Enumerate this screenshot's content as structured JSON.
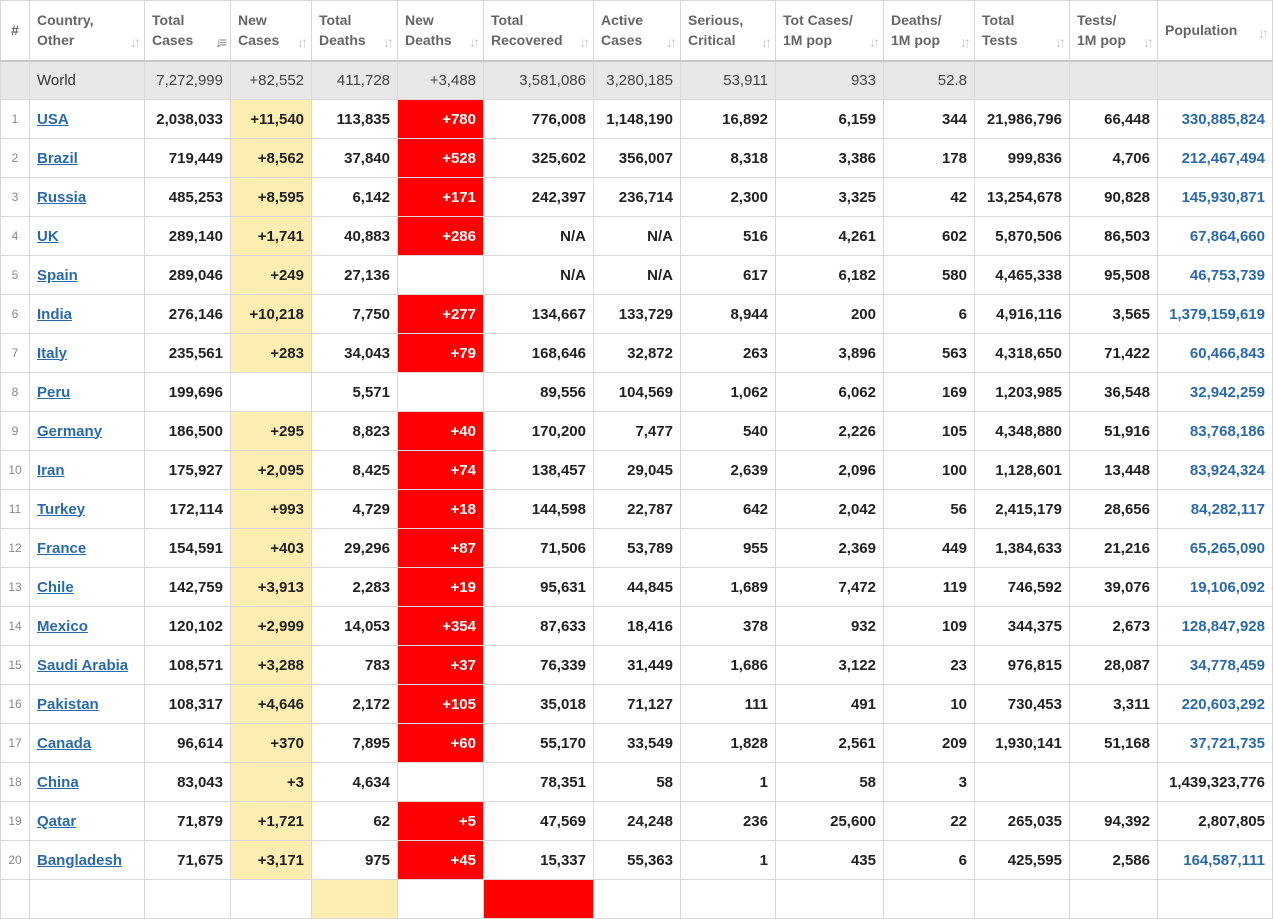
{
  "headers": [
    {
      "key": "rank",
      "label": "#"
    },
    {
      "key": "country",
      "label1": "Country,",
      "label2": "Other"
    },
    {
      "key": "total_cases",
      "label1": "Total",
      "label2": "Cases"
    },
    {
      "key": "new_cases",
      "label1": "New",
      "label2": "Cases"
    },
    {
      "key": "total_deaths",
      "label1": "Total",
      "label2": "Deaths"
    },
    {
      "key": "new_deaths",
      "label1": "New",
      "label2": "Deaths"
    },
    {
      "key": "total_recovered",
      "label1": "Total",
      "label2": "Recovered"
    },
    {
      "key": "active_cases",
      "label1": "Active",
      "label2": "Cases"
    },
    {
      "key": "serious_critical",
      "label1": "Serious,",
      "label2": "Critical"
    },
    {
      "key": "cases_per_1m",
      "label1": "Tot Cases/",
      "label2": "1M pop"
    },
    {
      "key": "deaths_per_1m",
      "label1": "Deaths/",
      "label2": "1M pop"
    },
    {
      "key": "total_tests",
      "label1": "Total",
      "label2": "Tests"
    },
    {
      "key": "tests_per_1m",
      "label1": "Tests/",
      "label2": "1M pop"
    },
    {
      "key": "population",
      "label1": "Population",
      "label2": ""
    }
  ],
  "sort_icon": "sort-arrows-icon",
  "active_sort_icon": "sort-descending-icon",
  "colors": {
    "new_cases_bg": "#fceeb0",
    "new_deaths_bg": "#ff0000",
    "link": "#2a6aab",
    "world_row_bg": "#e8e8e8"
  },
  "world": [
    "World",
    "7,272,999",
    "+82,552",
    "411,728",
    "+3,488",
    "3,581,086",
    "3,280,185",
    "53,911",
    "933",
    "52.8",
    "",
    "",
    ""
  ],
  "rows": [
    [
      "1",
      "USA",
      "2,038,033",
      "+11,540",
      "113,835",
      "+780",
      "776,008",
      "1,148,190",
      "16,892",
      "6,159",
      "344",
      "21,986,796",
      "66,448",
      "330,885,824"
    ],
    [
      "2",
      "Brazil",
      "719,449",
      "+8,562",
      "37,840",
      "+528",
      "325,602",
      "356,007",
      "8,318",
      "3,386",
      "178",
      "999,836",
      "4,706",
      "212,467,494"
    ],
    [
      "3",
      "Russia",
      "485,253",
      "+8,595",
      "6,142",
      "+171",
      "242,397",
      "236,714",
      "2,300",
      "3,325",
      "42",
      "13,254,678",
      "90,828",
      "145,930,871"
    ],
    [
      "4",
      "UK",
      "289,140",
      "+1,741",
      "40,883",
      "+286",
      "N/A",
      "N/A",
      "516",
      "4,261",
      "602",
      "5,870,506",
      "86,503",
      "67,864,660"
    ],
    [
      "5",
      "Spain",
      "289,046",
      "+249",
      "27,136",
      "",
      "N/A",
      "N/A",
      "617",
      "6,182",
      "580",
      "4,465,338",
      "95,508",
      "46,753,739"
    ],
    [
      "6",
      "India",
      "276,146",
      "+10,218",
      "7,750",
      "+277",
      "134,667",
      "133,729",
      "8,944",
      "200",
      "6",
      "4,916,116",
      "3,565",
      "1,379,159,619"
    ],
    [
      "7",
      "Italy",
      "235,561",
      "+283",
      "34,043",
      "+79",
      "168,646",
      "32,872",
      "263",
      "3,896",
      "563",
      "4,318,650",
      "71,422",
      "60,466,843"
    ],
    [
      "8",
      "Peru",
      "199,696",
      "",
      "5,571",
      "",
      "89,556",
      "104,569",
      "1,062",
      "6,062",
      "169",
      "1,203,985",
      "36,548",
      "32,942,259"
    ],
    [
      "9",
      "Germany",
      "186,500",
      "+295",
      "8,823",
      "+40",
      "170,200",
      "7,477",
      "540",
      "2,226",
      "105",
      "4,348,880",
      "51,916",
      "83,768,186"
    ],
    [
      "10",
      "Iran",
      "175,927",
      "+2,095",
      "8,425",
      "+74",
      "138,457",
      "29,045",
      "2,639",
      "2,096",
      "100",
      "1,128,601",
      "13,448",
      "83,924,324"
    ],
    [
      "11",
      "Turkey",
      "172,114",
      "+993",
      "4,729",
      "+18",
      "144,598",
      "22,787",
      "642",
      "2,042",
      "56",
      "2,415,179",
      "28,656",
      "84,282,117"
    ],
    [
      "12",
      "France",
      "154,591",
      "+403",
      "29,296",
      "+87",
      "71,506",
      "53,789",
      "955",
      "2,369",
      "449",
      "1,384,633",
      "21,216",
      "65,265,090"
    ],
    [
      "13",
      "Chile",
      "142,759",
      "+3,913",
      "2,283",
      "+19",
      "95,631",
      "44,845",
      "1,689",
      "7,472",
      "119",
      "746,592",
      "39,076",
      "19,106,092"
    ],
    [
      "14",
      "Mexico",
      "120,102",
      "+2,999",
      "14,053",
      "+354",
      "87,633",
      "18,416",
      "378",
      "932",
      "109",
      "344,375",
      "2,673",
      "128,847,928"
    ],
    [
      "15",
      "Saudi Arabia",
      "108,571",
      "+3,288",
      "783",
      "+37",
      "76,339",
      "31,449",
      "1,686",
      "3,122",
      "23",
      "976,815",
      "28,087",
      "34,778,459"
    ],
    [
      "16",
      "Pakistan",
      "108,317",
      "+4,646",
      "2,172",
      "+105",
      "35,018",
      "71,127",
      "111",
      "491",
      "10",
      "730,453",
      "3,311",
      "220,603,292"
    ],
    [
      "17",
      "Canada",
      "96,614",
      "+370",
      "7,895",
      "+60",
      "55,170",
      "33,549",
      "1,828",
      "2,561",
      "209",
      "1,930,141",
      "51,168",
      "37,721,735"
    ],
    [
      "18",
      "China",
      "83,043",
      "+3",
      "4,634",
      "",
      "78,351",
      "58",
      "1",
      "58",
      "3",
      "",
      "",
      "1,439,323,776"
    ],
    [
      "19",
      "Qatar",
      "71,879",
      "+1,721",
      "62",
      "+5",
      "47,569",
      "24,248",
      "236",
      "25,600",
      "22",
      "265,035",
      "94,392",
      "2,807,805"
    ],
    [
      "20",
      "Bangladesh",
      "71,675",
      "+3,171",
      "975",
      "+45",
      "15,337",
      "55,363",
      "1",
      "435",
      "6",
      "425,595",
      "2,586",
      "164,587,111"
    ]
  ],
  "plain_population_rows": [
    "China",
    "Qatar"
  ],
  "partial_row_colors": [
    "",
    "",
    "",
    "",
    "#fceeb0",
    "",
    "#ff0000"
  ]
}
